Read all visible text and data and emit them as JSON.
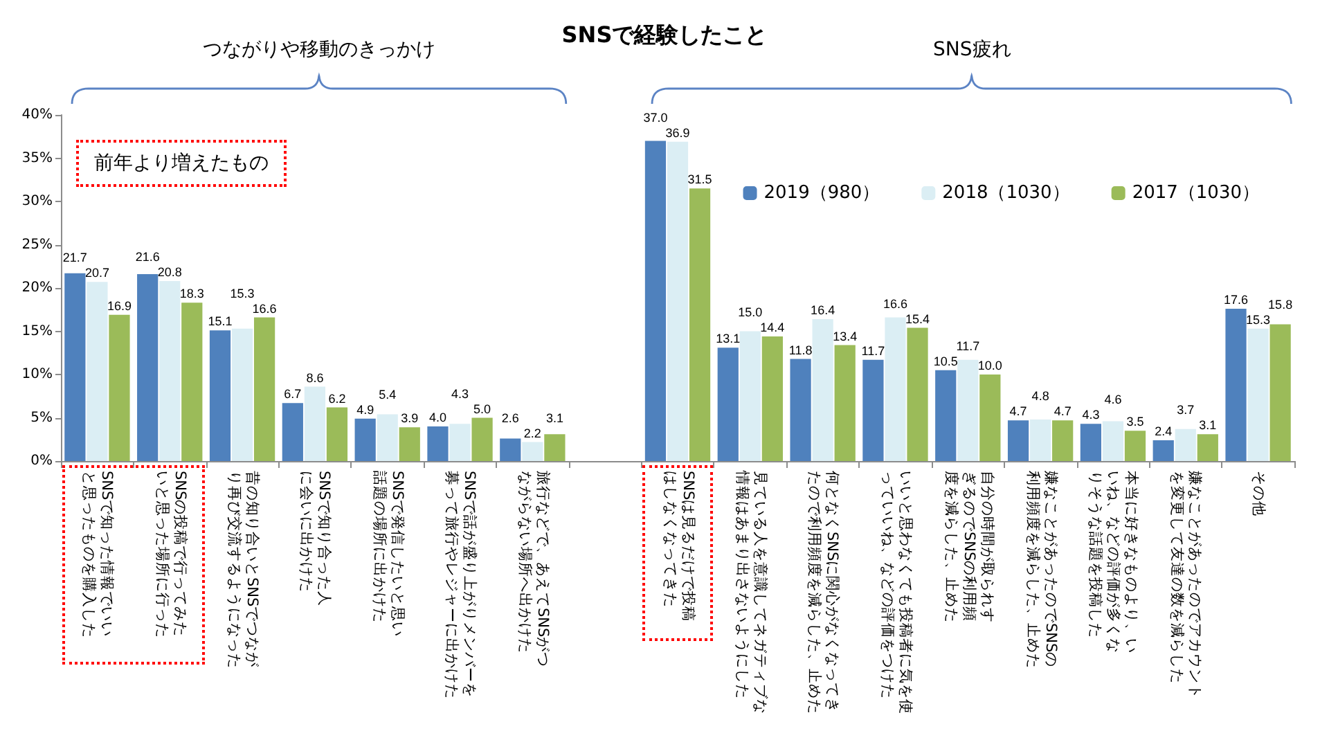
{
  "chart_data": {
    "type": "bar",
    "title": "SNSで経験したこと",
    "categories": [
      "SNSで知った情報でいいと思ったものを購入した",
      "SNSの投稿で行ってみたいと思った場所に行った",
      "昔の知り合いとSNSでつながり再び交流するようになった",
      "SNSで知り合った人に会いに出かけた",
      "SNSで発信したいと思い話題の場所に出かけた",
      "SNSで話が盛り上がりメンバーを募って旅行やレジャーに出かけた",
      "旅行などで、あえてSNSがつながらない場所へ出かけた",
      null,
      "SNSは見るだけで投稿はしなくなってきた",
      "見ている人を意識してネガティブな情報はあまり出さないようにした",
      "何となくSNSに関心がなくなってきたので利用頻度を減らした、止めた",
      "いいと思わなくても投稿者に気を使っていいね、などの評価をつけた",
      "自分の時間が取られすぎるのでSNSの利用頻度を減らした、止めた",
      "嫌なことがあったのでSNSの利用頻度を減らした、止めた",
      "本当に好きなものより、いいね、などの評価が多くなりそうな話題を投稿した",
      "嫌なことがあったのでアカウントを変更して友達の数を減らした",
      "その他"
    ],
    "series": [
      {
        "name": "2019（980）",
        "color": "#4f81bd",
        "values": [
          21.7,
          21.6,
          15.1,
          6.7,
          4.9,
          4.0,
          2.6,
          null,
          37.0,
          13.1,
          11.8,
          11.7,
          10.5,
          4.7,
          4.3,
          2.4,
          17.6
        ],
        "value_labels": [
          "21.7",
          "21.6",
          "15.1",
          "6.7",
          "4.9",
          "4.0",
          "2.6",
          null,
          "37.0",
          "13.1",
          "11.8",
          "11.7",
          "10.5",
          "4.7",
          "4.3",
          "2.4",
          "17.6"
        ]
      },
      {
        "name": "2018（1030）",
        "color": "#dbeef4",
        "values": [
          20.7,
          20.8,
          15.3,
          8.6,
          5.4,
          4.3,
          2.2,
          null,
          36.9,
          15.0,
          16.4,
          16.6,
          11.7,
          4.8,
          4.6,
          3.7,
          15.3
        ],
        "value_labels": [
          "20.7",
          "20.8",
          "15.3",
          "8.6",
          "5.4",
          "4.3",
          "2.2",
          null,
          "36.9",
          "15.0",
          "16.4",
          "16.6",
          "11.7",
          "4.8",
          "4.6",
          "3.7",
          "15.3"
        ]
      },
      {
        "name": "2017（1030）",
        "color": "#9bbb59",
        "values": [
          16.9,
          18.3,
          16.6,
          6.2,
          3.9,
          5.0,
          3.1,
          null,
          31.5,
          14.4,
          13.4,
          15.4,
          10.0,
          4.7,
          3.5,
          3.1,
          15.8
        ],
        "value_labels": [
          "16.9",
          "18.3",
          "16.6",
          "6.2",
          "3.9",
          "5.0",
          "3.1",
          null,
          "31.5",
          "14.4",
          "13.4",
          "15.4",
          "10.0",
          "4.7",
          "3.5",
          "3.1",
          "15.8"
        ]
      }
    ],
    "ylim": [
      0,
      40
    ],
    "yticks": [
      {
        "value": 0,
        "label": "0%"
      },
      {
        "value": 5,
        "label": "5%"
      },
      {
        "value": 10,
        "label": "10%"
      },
      {
        "value": 15,
        "label": "15%"
      },
      {
        "value": 20,
        "label": "20%"
      },
      {
        "value": 25,
        "label": "25%"
      },
      {
        "value": 30,
        "label": "30%"
      },
      {
        "value": 35,
        "label": "35%"
      },
      {
        "value": 40,
        "label": "40%"
      }
    ],
    "legend": "top right",
    "annotations": [
      "つながりや移動のきっかけ",
      "SNS疲れ",
      "前年より増えたもの"
    ]
  }
}
